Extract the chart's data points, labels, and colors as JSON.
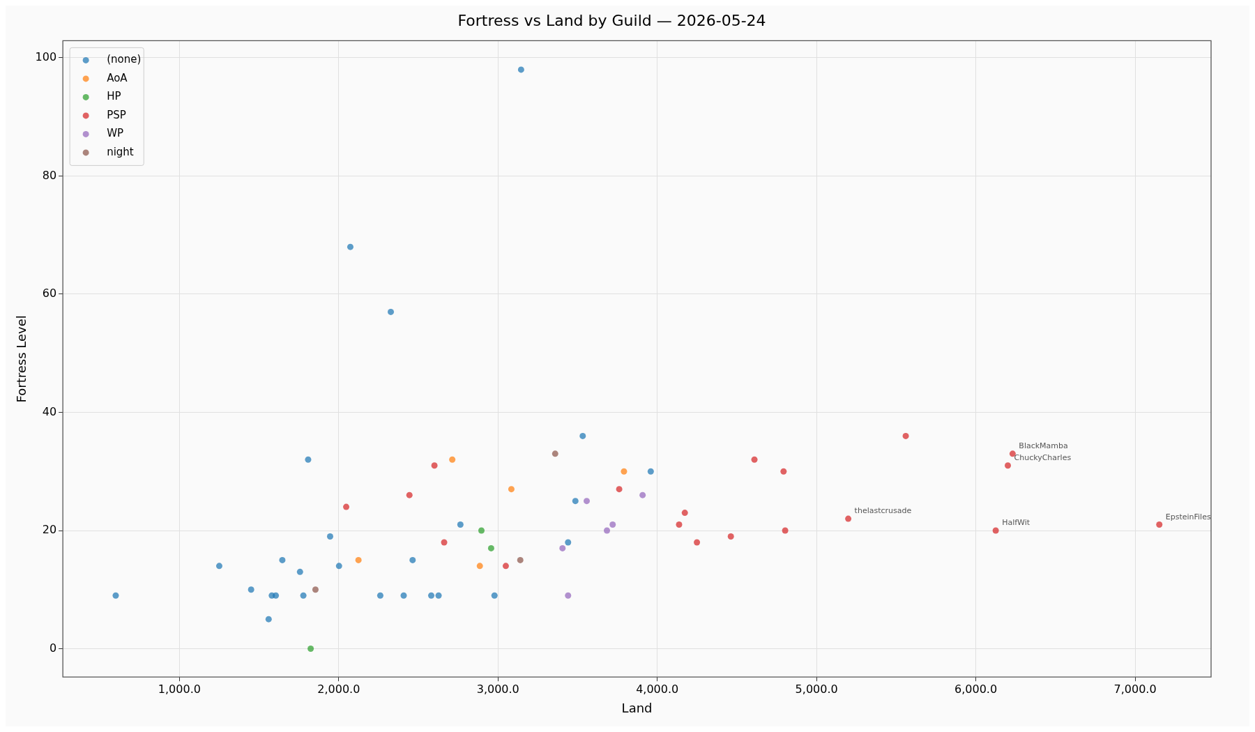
{
  "chart_data": {
    "type": "scatter",
    "title": "Fortress vs Land by Guild — 2026-05-24",
    "xlabel": "Land",
    "ylabel": "Fortress Level",
    "xlim": [
      268,
      7477
    ],
    "ylim": [
      -4.8,
      102.9
    ],
    "xticks": [
      {
        "value": 1000,
        "label": "1,000.0"
      },
      {
        "value": 2000,
        "label": "2,000.0"
      },
      {
        "value": 3000,
        "label": "3,000.0"
      },
      {
        "value": 4000,
        "label": "4,000.0"
      },
      {
        "value": 5000,
        "label": "5,000.0"
      },
      {
        "value": 6000,
        "label": "6,000.0"
      },
      {
        "value": 7000,
        "label": "7,000.0"
      }
    ],
    "yticks": [
      0,
      20,
      40,
      60,
      80,
      100
    ],
    "grid": true,
    "legend": "top left",
    "marker": "circle",
    "series": [
      {
        "name": "(none)",
        "color": "#1f77b4",
        "x": [
          600,
          1250,
          1450,
          1560,
          1580,
          1605,
          1646,
          1757,
          1778,
          1808,
          1946,
          2002,
          2073,
          2261,
          2327,
          2408,
          2464,
          2581,
          2627,
          2764,
          2978,
          3145,
          3440,
          3486,
          3532,
          3959
        ],
        "values": [
          9,
          14,
          10,
          5,
          9,
          9,
          15,
          13,
          9,
          32,
          19,
          14,
          68,
          9,
          57,
          9,
          15,
          9,
          9,
          21,
          9,
          98,
          18,
          25,
          36,
          30
        ]
      },
      {
        "name": "AoA",
        "color": "#ff7f0e",
        "x": [
          2124,
          2713,
          2886,
          3084,
          3791
        ],
        "values": [
          15,
          32,
          14,
          27,
          30
        ]
      },
      {
        "name": "HP",
        "color": "#2ca02c",
        "x": [
          1824,
          2896,
          2957
        ],
        "values": [
          0,
          20,
          17
        ]
      },
      {
        "name": "PSP",
        "color": "#d62728",
        "x": [
          2047,
          2444,
          2601,
          2662,
          3049,
          3761,
          4137,
          4173,
          4249,
          4462,
          4610,
          4793,
          4803,
          5199,
          5560,
          6125,
          6201,
          6231,
          7152
        ],
        "values": [
          24,
          26,
          31,
          18,
          14,
          27,
          21,
          23,
          18,
          19,
          32,
          30,
          20,
          22,
          36,
          20,
          31,
          33,
          21
        ]
      },
      {
        "name": "WP",
        "color": "#9467bd",
        "x": [
          3405,
          3440,
          3557,
          3684,
          3720,
          3908
        ],
        "values": [
          17,
          9,
          25,
          20,
          21,
          26
        ]
      },
      {
        "name": "night",
        "color": "#8c564b",
        "x": [
          1854,
          3140,
          3359
        ],
        "values": [
          10,
          15,
          33
        ]
      }
    ],
    "annotations": [
      {
        "text": "BlackMamba",
        "x": 6231,
        "y": 33
      },
      {
        "text": "ChuckyCharles",
        "x": 6201,
        "y": 31
      },
      {
        "text": "thelastcrusade",
        "x": 5199,
        "y": 22
      },
      {
        "text": "HalfWit",
        "x": 6125,
        "y": 20
      },
      {
        "text": "EpsteinFiles",
        "x": 7152,
        "y": 21
      }
    ]
  }
}
